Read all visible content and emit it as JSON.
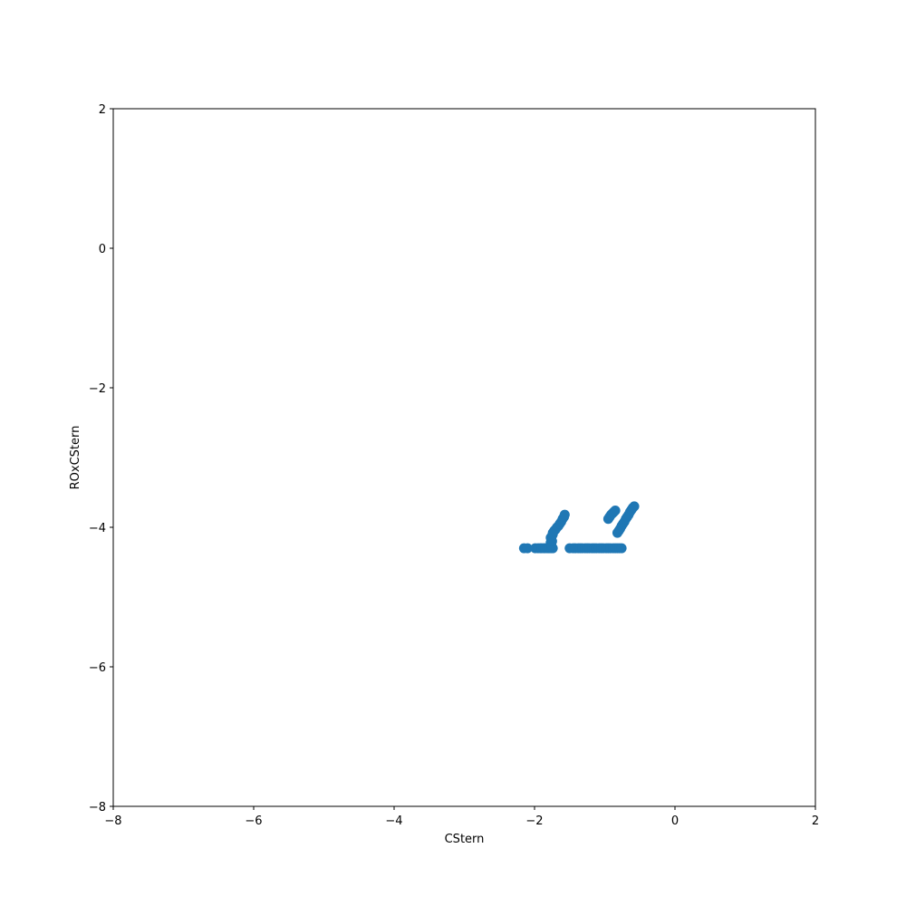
{
  "chart_data": {
    "type": "scatter",
    "title": "",
    "xlabel": "CStern",
    "ylabel": "ROxCStern",
    "xlim": [
      -8,
      2
    ],
    "ylim": [
      -8,
      2
    ],
    "x_ticks": [
      -8,
      -6,
      -4,
      -2,
      0,
      2
    ],
    "y_ticks": [
      -8,
      -6,
      -4,
      -2,
      0,
      2
    ],
    "x_tick_labels": [
      "−8",
      "−6",
      "−4",
      "−2",
      "0",
      "2"
    ],
    "y_tick_labels": [
      "−8",
      "−6",
      "−4",
      "−2",
      "0",
      "2"
    ],
    "grid": false,
    "marker_color": "#1f77b4",
    "series": [
      {
        "x": [
          -2.15,
          -2.1,
          -1.99,
          -1.95,
          -1.92,
          -1.9,
          -1.87,
          -1.85,
          -1.82,
          -1.8,
          -1.78,
          -1.76,
          -1.74,
          -1.77,
          -1.76,
          -1.75,
          -1.74,
          -1.72,
          -1.7,
          -1.68,
          -1.66,
          -1.64,
          -1.62,
          -1.6,
          -1.58,
          -1.57,
          -1.76,
          -1.75,
          -1.77,
          -1.74,
          -1.5,
          -1.45,
          -1.42,
          -1.38,
          -1.35,
          -1.32,
          -1.28,
          -1.25,
          -1.22,
          -1.18,
          -1.15,
          -1.12,
          -1.08,
          -1.05,
          -1.02,
          -0.98,
          -0.95,
          -0.92,
          -0.88,
          -0.85,
          -0.82,
          -0.79,
          -0.76,
          -0.95,
          -0.93,
          -0.91,
          -0.89,
          -0.87,
          -0.85,
          -0.82,
          -0.8,
          -0.78,
          -0.76,
          -0.74,
          -0.72,
          -0.7,
          -0.68,
          -0.66,
          -0.64,
          -0.62,
          -0.6,
          -0.58
        ],
        "y": [
          -4.3,
          -4.3,
          -4.3,
          -4.3,
          -4.3,
          -4.3,
          -4.3,
          -4.3,
          -4.3,
          -4.3,
          -4.3,
          -4.3,
          -4.3,
          -4.22,
          -4.18,
          -4.12,
          -4.08,
          -4.05,
          -4.03,
          -4.0,
          -3.98,
          -3.95,
          -3.92,
          -3.88,
          -3.85,
          -3.82,
          -4.25,
          -4.2,
          -4.15,
          -4.1,
          -4.3,
          -4.3,
          -4.3,
          -4.3,
          -4.3,
          -4.3,
          -4.3,
          -4.3,
          -4.3,
          -4.3,
          -4.3,
          -4.3,
          -4.3,
          -4.3,
          -4.3,
          -4.3,
          -4.3,
          -4.3,
          -4.3,
          -4.3,
          -4.3,
          -4.3,
          -4.3,
          -3.88,
          -3.85,
          -3.82,
          -3.8,
          -3.78,
          -3.76,
          -4.08,
          -4.05,
          -4.02,
          -3.98,
          -3.95,
          -3.92,
          -3.88,
          -3.85,
          -3.82,
          -3.78,
          -3.75,
          -3.72,
          -3.7
        ]
      }
    ]
  }
}
